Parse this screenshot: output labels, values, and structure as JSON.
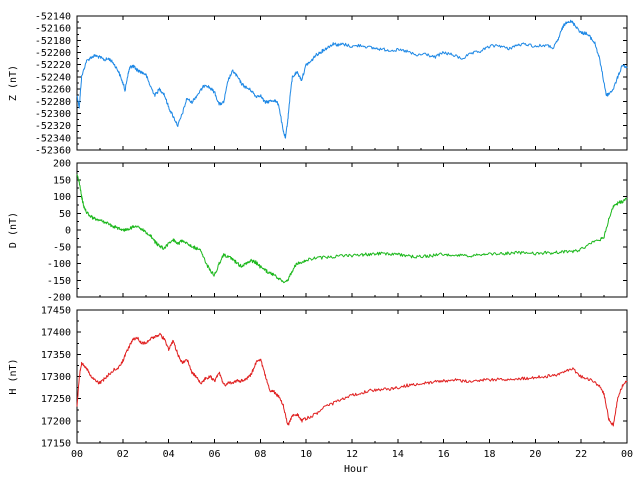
{
  "chart_data": [
    {
      "type": "line",
      "ylabel": "Z (nT)",
      "ylim": [
        -52360,
        -52140
      ],
      "yticks": [
        -52140,
        -52160,
        -52180,
        -52200,
        -52220,
        -52240,
        -52260,
        -52280,
        -52300,
        -52320,
        -52340,
        -52360
      ],
      "color": "#1e88e5",
      "series": [
        {
          "x": [
            0,
            0.1,
            0.2,
            0.4,
            0.6,
            0.8,
            1.0,
            1.2,
            1.4,
            1.6,
            1.8,
            2.0,
            2.1,
            2.2,
            2.3,
            2.4,
            2.5,
            2.6,
            2.8,
            3.0,
            3.2,
            3.4,
            3.6,
            3.8,
            4.0,
            4.2,
            4.4,
            4.6,
            4.8,
            5.0,
            5.2,
            5.4,
            5.6,
            5.8,
            6.0,
            6.2,
            6.4,
            6.6,
            6.8,
            7.0,
            7.2,
            7.4,
            7.6,
            7.8,
            8.0,
            8.2,
            8.4,
            8.6,
            8.8,
            9.0,
            9.1,
            9.2,
            9.3,
            9.4,
            9.6,
            9.8,
            10.0,
            10.2,
            10.4,
            10.6,
            10.8,
            11.0,
            11.2,
            11.4,
            11.6,
            12.0,
            12.4,
            12.8,
            13.2,
            13.6,
            14.0,
            14.4,
            14.8,
            15.2,
            15.6,
            16.0,
            16.4,
            16.8,
            17.2,
            17.6,
            18.0,
            18.4,
            18.8,
            19.2,
            19.6,
            20.0,
            20.4,
            20.8,
            21.0,
            21.2,
            21.4,
            21.6,
            21.8,
            22.0,
            22.2,
            22.4,
            22.6,
            22.8,
            23.0,
            23.1,
            23.2,
            23.4,
            23.6,
            23.8,
            24.0
          ],
          "y": [
            -52270,
            -52290,
            -52240,
            -52215,
            -52208,
            -52205,
            -52208,
            -52212,
            -52210,
            -52218,
            -52230,
            -52250,
            -52262,
            -52240,
            -52225,
            -52222,
            -52224,
            -52228,
            -52232,
            -52236,
            -52255,
            -52270,
            -52260,
            -52268,
            -52290,
            -52305,
            -52320,
            -52300,
            -52275,
            -52282,
            -52272,
            -52262,
            -52252,
            -52258,
            -52265,
            -52285,
            -52282,
            -52245,
            -52230,
            -52240,
            -52252,
            -52258,
            -52262,
            -52272,
            -52270,
            -52282,
            -52280,
            -52278,
            -52285,
            -52330,
            -52340,
            -52310,
            -52270,
            -52240,
            -52232,
            -52245,
            -52220,
            -52215,
            -52205,
            -52200,
            -52195,
            -52190,
            -52185,
            -52188,
            -52186,
            -52190,
            -52188,
            -52192,
            -52194,
            -52196,
            -52196,
            -52198,
            -52205,
            -52202,
            -52208,
            -52200,
            -52204,
            -52210,
            -52202,
            -52198,
            -52190,
            -52188,
            -52194,
            -52188,
            -52186,
            -52190,
            -52188,
            -52192,
            -52178,
            -52158,
            -52148,
            -52150,
            -52158,
            -52168,
            -52168,
            -52175,
            -52185,
            -52210,
            -52250,
            -52270,
            -52268,
            -52260,
            -52240,
            -52220,
            -52225
          ]
        }
      ]
    },
    {
      "type": "line",
      "ylabel": "D (nT)",
      "ylim": [
        -200,
        200
      ],
      "yticks": [
        200,
        150,
        100,
        50,
        0,
        -50,
        -100,
        -150,
        -200
      ],
      "color": "#1db81d",
      "series": [
        {
          "x": [
            0,
            0.1,
            0.2,
            0.3,
            0.4,
            0.6,
            0.8,
            1.0,
            1.2,
            1.4,
            1.6,
            1.8,
            2.0,
            2.2,
            2.4,
            2.6,
            2.8,
            3.0,
            3.2,
            3.4,
            3.6,
            3.8,
            4.0,
            4.2,
            4.4,
            4.6,
            4.8,
            5.0,
            5.2,
            5.4,
            5.6,
            5.8,
            6.0,
            6.2,
            6.4,
            6.6,
            6.8,
            7.0,
            7.2,
            7.4,
            7.6,
            7.8,
            8.0,
            8.2,
            8.4,
            8.6,
            8.8,
            9.0,
            9.2,
            9.4,
            9.6,
            9.8,
            10.0,
            10.4,
            10.8,
            11.2,
            11.6,
            12.0,
            12.4,
            12.8,
            13.2,
            13.6,
            14.0,
            14.4,
            14.8,
            15.2,
            15.6,
            16.0,
            16.4,
            16.8,
            17.2,
            17.6,
            18.0,
            18.4,
            18.8,
            19.2,
            19.6,
            20.0,
            20.4,
            20.8,
            21.2,
            21.6,
            22.0,
            22.4,
            22.8,
            23.0,
            23.2,
            23.4,
            23.6,
            23.8,
            24.0
          ],
          "y": [
            170,
            140,
            100,
            70,
            55,
            40,
            32,
            28,
            24,
            18,
            10,
            5,
            0,
            2,
            8,
            12,
            4,
            -8,
            -15,
            -35,
            -48,
            -55,
            -40,
            -30,
            -42,
            -30,
            -38,
            -48,
            -55,
            -60,
            -95,
            -120,
            -135,
            -100,
            -75,
            -80,
            -88,
            -100,
            -110,
            -98,
            -92,
            -96,
            -110,
            -120,
            -128,
            -135,
            -145,
            -155,
            -150,
            -120,
            -100,
            -95,
            -90,
            -85,
            -82,
            -80,
            -78,
            -76,
            -74,
            -72,
            -70,
            -70,
            -72,
            -78,
            -80,
            -78,
            -76,
            -72,
            -74,
            -76,
            -78,
            -75,
            -72,
            -70,
            -70,
            -68,
            -68,
            -70,
            -68,
            -68,
            -66,
            -64,
            -58,
            -40,
            -30,
            -20,
            30,
            70,
            80,
            85,
            95
          ]
        }
      ]
    },
    {
      "type": "line",
      "ylabel": "H (nT)",
      "ylim": [
        17150,
        17450
      ],
      "yticks": [
        17450,
        17400,
        17350,
        17300,
        17250,
        17200,
        17150
      ],
      "color": "#e02020",
      "series": [
        {
          "x": [
            0,
            0.1,
            0.2,
            0.4,
            0.6,
            0.8,
            1.0,
            1.2,
            1.4,
            1.6,
            1.8,
            2.0,
            2.2,
            2.4,
            2.6,
            2.8,
            3.0,
            3.2,
            3.4,
            3.6,
            3.8,
            4.0,
            4.2,
            4.4,
            4.6,
            4.8,
            5.0,
            5.2,
            5.4,
            5.6,
            5.8,
            6.0,
            6.2,
            6.4,
            6.6,
            6.8,
            7.0,
            7.2,
            7.4,
            7.6,
            7.8,
            8.0,
            8.2,
            8.4,
            8.6,
            8.8,
            9.0,
            9.2,
            9.4,
            9.6,
            9.8,
            10.0,
            10.4,
            10.8,
            11.2,
            11.6,
            12.0,
            12.4,
            12.8,
            13.2,
            13.6,
            14.0,
            14.4,
            14.8,
            15.2,
            15.6,
            16.0,
            16.4,
            16.8,
            17.2,
            17.6,
            18.0,
            18.4,
            18.8,
            19.2,
            19.6,
            20.0,
            20.4,
            20.8,
            21.2,
            21.6,
            22.0,
            22.4,
            22.8,
            23.0,
            23.2,
            23.4,
            23.6,
            23.8,
            24.0
          ],
          "y": [
            17230,
            17300,
            17330,
            17320,
            17300,
            17290,
            17285,
            17295,
            17305,
            17315,
            17320,
            17335,
            17360,
            17380,
            17390,
            17375,
            17375,
            17385,
            17390,
            17395,
            17385,
            17360,
            17380,
            17350,
            17330,
            17340,
            17310,
            17300,
            17285,
            17295,
            17300,
            17290,
            17310,
            17280,
            17285,
            17285,
            17290,
            17290,
            17295,
            17305,
            17330,
            17340,
            17305,
            17270,
            17265,
            17255,
            17235,
            17190,
            17210,
            17215,
            17200,
            17205,
            17215,
            17230,
            17240,
            17250,
            17258,
            17262,
            17268,
            17270,
            17272,
            17275,
            17280,
            17282,
            17285,
            17288,
            17290,
            17292,
            17290,
            17290,
            17292,
            17292,
            17294,
            17294,
            17296,
            17296,
            17298,
            17300,
            17302,
            17310,
            17318,
            17300,
            17292,
            17280,
            17260,
            17205,
            17190,
            17250,
            17280,
            17290
          ]
        }
      ]
    },
    {
      "type": "axis",
      "xlabel": "Hour",
      "xlim": [
        0,
        24
      ],
      "xtick_labels": [
        "00",
        "02",
        "04",
        "06",
        "08",
        "10",
        "12",
        "14",
        "16",
        "18",
        "20",
        "22",
        "00"
      ]
    }
  ]
}
